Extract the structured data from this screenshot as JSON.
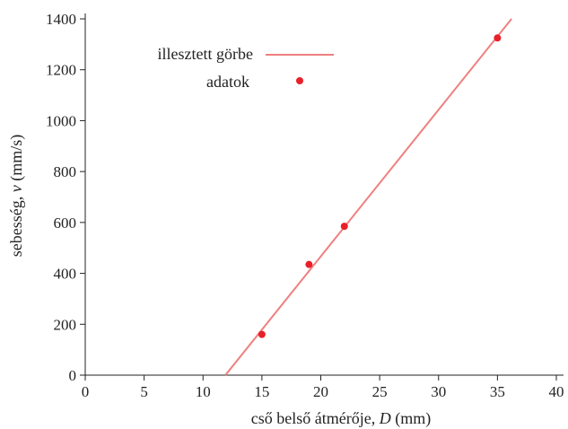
{
  "chart_data": {
    "type": "scatter",
    "title": "",
    "xlabel": "cső belső átmérője, D (mm)",
    "xlabel_parts": {
      "before": "cső belső átmérője, ",
      "var": "D",
      "after": " (mm)"
    },
    "ylabel": "sebesség, v (mm/s)",
    "ylabel_parts": {
      "before": "sebesség, ",
      "var": "v",
      "after": " (mm/s)"
    },
    "xlim": [
      0,
      40
    ],
    "ylim": [
      0,
      1400
    ],
    "xticks": [
      0,
      5,
      10,
      15,
      20,
      25,
      30,
      35,
      40
    ],
    "yticks": [
      0,
      200,
      400,
      600,
      800,
      1000,
      1200,
      1400
    ],
    "grid": false,
    "legend_position": "top-left",
    "series": [
      {
        "name": "illesztett görbe",
        "kind": "line",
        "color": "#ef7f7f",
        "x": [
          11.9,
          36.2
        ],
        "y": [
          0,
          1400
        ]
      },
      {
        "name": "adatok",
        "kind": "scatter",
        "color": "#e8202a",
        "x": [
          15,
          19,
          22,
          35
        ],
        "y": [
          160,
          435,
          585,
          1325
        ]
      }
    ]
  }
}
